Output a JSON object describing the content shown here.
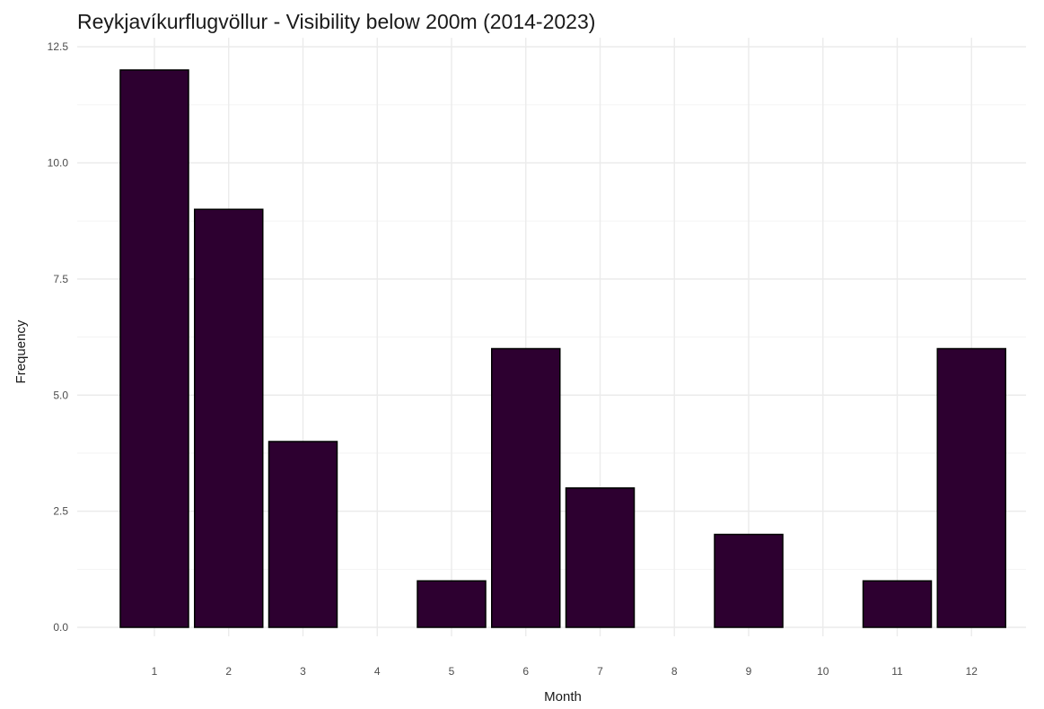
{
  "chart_data": {
    "type": "bar",
    "title": "Reykjavíkurflugvöllur - Visibility below 200m (2014-2023)",
    "xlabel": "Month",
    "ylabel": "Frequency",
    "categories": [
      "1",
      "2",
      "3",
      "4",
      "5",
      "6",
      "7",
      "8",
      "9",
      "10",
      "11",
      "12"
    ],
    "values": [
      12,
      9,
      4,
      0,
      1,
      6,
      3,
      0,
      2,
      0,
      1,
      6
    ],
    "ylim": [
      0,
      12.5
    ],
    "yticks": [
      "0.0",
      "2.5",
      "5.0",
      "7.5",
      "10.0",
      "12.5"
    ],
    "ytick_values": [
      0,
      2.5,
      5,
      7.5,
      10,
      12.5
    ],
    "bar_color": "#2d0030",
    "grid": true,
    "legend": false
  }
}
